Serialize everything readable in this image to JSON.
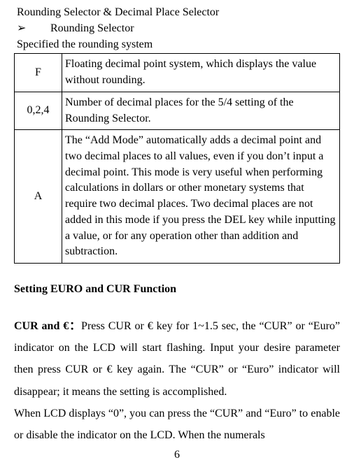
{
  "header": {
    "title": "Rounding Selector & Decimal Place Selector",
    "bullet_glyph": "➢",
    "bullet_label": "Rounding Selector",
    "subtitle": "Specified the rounding system"
  },
  "table": {
    "rows": [
      {
        "key": "F",
        "desc": "Floating decimal point system, which displays the value without rounding."
      },
      {
        "key": "0,2,4",
        "desc": "Number of decimal places for the 5/4 setting of the Rounding Selector."
      },
      {
        "key": "A",
        "desc": "The “Add Mode” automatically adds a decimal point and two decimal places to all values, even if you don’t input a decimal point. This mode is very useful when performing calculations in dollars or other monetary systems that require two decimal places. Two decimal places are not added in this mode if you press the DEL key while inputting a value, or for any operation other than addition and subtraction."
      }
    ]
  },
  "section": {
    "heading": "Setting EURO and CUR Function",
    "run_in": "CUR and €：",
    "para1_rest": "Press CUR or € key for 1~1.5 sec, the “CUR” or “Euro” indicator on the LCD will start flashing. Input your desire parameter then press CUR or € key again. The “CUR” or “Euro” indicator will disappear; it means the setting is accomplished.",
    "para2": "When LCD displays “0”, you can press the “CUR” and “Euro” to enable or disable the indicator on the LCD. When the numerals"
  },
  "page_number": "6"
}
